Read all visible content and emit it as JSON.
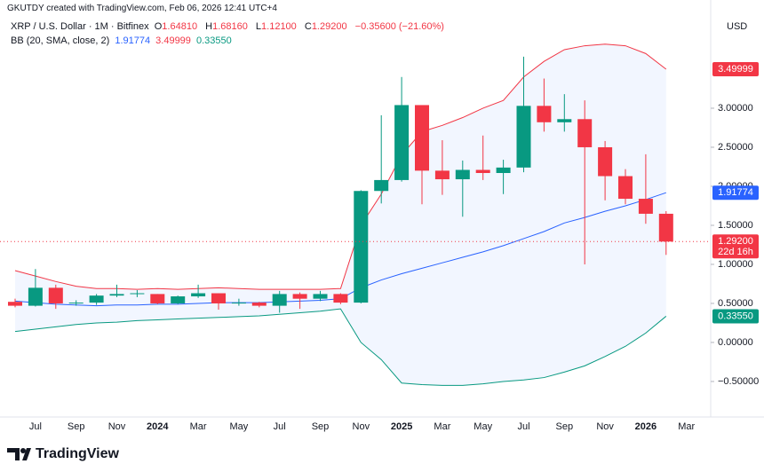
{
  "header": {
    "credit": "GKUTDY created with TradingView.com, Feb 06, 2026 12:41 UTC+4"
  },
  "footer": {
    "brand": "TradingView"
  },
  "chart_data": {
    "type": "candlestick",
    "title": "XRP / U.S. Dollar · 1M · Bitfinex",
    "ohlc_legend": [
      {
        "prefix": "O",
        "text": "1.64810"
      },
      {
        "prefix": "H",
        "text": "1.68160"
      },
      {
        "prefix": "L",
        "text": "1.12100"
      },
      {
        "prefix": "C",
        "text": "1.29200"
      }
    ],
    "change": "−0.35600 (−21.60%)",
    "currency": "USD",
    "countdown": "22d 16h",
    "up_color": "#089981",
    "down_color": "#f23645",
    "categories": [
      null,
      "Jul",
      null,
      "Sep",
      null,
      "Nov",
      null,
      "2024",
      null,
      "Mar",
      null,
      "May",
      null,
      "Jul",
      null,
      "Sep",
      null,
      "Nov",
      null,
      "2025",
      null,
      "Mar",
      null,
      "May",
      null,
      "Jul",
      null,
      "Sep",
      null,
      "Nov",
      null,
      "2026",
      null,
      "Mar"
    ],
    "open": [
      0.52,
      0.47,
      0.7,
      0.5,
      0.51,
      0.6,
      0.62,
      0.62,
      0.5,
      0.59,
      0.63,
      0.5,
      0.51,
      0.47,
      0.62,
      0.56,
      0.62,
      0.51,
      1.94,
      2.08,
      3.04,
      2.2,
      2.09,
      2.21,
      2.17,
      2.24,
      3.03,
      2.82,
      2.86,
      2.5,
      2.13,
      1.84,
      1.6481,
      null
    ],
    "high": [
      0.56,
      0.94,
      0.74,
      0.54,
      0.62,
      0.74,
      0.67,
      0.62,
      0.6,
      0.74,
      0.63,
      0.56,
      0.52,
      0.66,
      0.64,
      0.66,
      0.63,
      1.95,
      2.91,
      3.4,
      3.04,
      2.59,
      2.33,
      2.65,
      2.34,
      3.66,
      3.38,
      3.18,
      3.1,
      2.58,
      2.22,
      2.41,
      1.6816,
      null
    ],
    "low": [
      0.45,
      0.46,
      0.43,
      0.47,
      0.48,
      0.58,
      0.58,
      0.49,
      0.49,
      0.57,
      0.42,
      0.47,
      0.45,
      0.38,
      0.43,
      0.53,
      0.49,
      0.5,
      1.78,
      2.06,
      1.77,
      1.89,
      1.61,
      2.08,
      1.9,
      2.18,
      2.7,
      2.7,
      1.0,
      1.82,
      1.77,
      1.52,
      1.121,
      null
    ],
    "close": [
      0.47,
      0.7,
      0.5,
      0.51,
      0.6,
      0.62,
      0.63,
      0.5,
      0.59,
      0.63,
      0.5,
      0.51,
      0.47,
      0.62,
      0.56,
      0.62,
      0.51,
      1.94,
      2.08,
      3.04,
      2.2,
      2.09,
      2.21,
      2.17,
      2.24,
      3.03,
      2.82,
      2.86,
      2.5,
      2.13,
      1.84,
      1.6481,
      1.292,
      null
    ],
    "bands": {
      "label": "BB (20, SMA, close, 2)",
      "series": [
        {
          "color": "#2962ff",
          "last_label": "1.91774",
          "values": [
            0.53,
            0.51,
            0.49,
            0.48,
            0.47,
            0.48,
            0.48,
            0.49,
            0.49,
            0.5,
            0.51,
            0.51,
            0.51,
            0.52,
            0.53,
            0.54,
            0.56,
            0.7,
            0.8,
            0.88,
            0.95,
            1.02,
            1.09,
            1.16,
            1.24,
            1.33,
            1.42,
            1.53,
            1.6,
            1.68,
            1.75,
            1.83,
            1.91774,
            null
          ]
        },
        {
          "color": "#f23645",
          "last_label": "3.49999",
          "values": [
            0.92,
            0.85,
            0.78,
            0.72,
            0.69,
            0.69,
            0.68,
            0.69,
            0.68,
            0.69,
            0.7,
            0.69,
            0.68,
            0.68,
            0.68,
            0.68,
            0.69,
            1.5,
            1.9,
            2.4,
            2.7,
            2.78,
            2.88,
            3.0,
            3.1,
            3.4,
            3.6,
            3.75,
            3.8,
            3.82,
            3.8,
            3.7,
            3.49999,
            null
          ]
        },
        {
          "color": "#089981",
          "last_label": "0.33550",
          "values": [
            0.14,
            0.17,
            0.2,
            0.23,
            0.25,
            0.26,
            0.28,
            0.29,
            0.3,
            0.31,
            0.32,
            0.33,
            0.34,
            0.36,
            0.38,
            0.4,
            0.43,
            0.0,
            -0.22,
            -0.52,
            -0.54,
            -0.55,
            -0.55,
            -0.53,
            -0.5,
            -0.48,
            -0.45,
            -0.38,
            -0.3,
            -0.18,
            -0.05,
            0.12,
            0.3355,
            null
          ]
        }
      ],
      "fill": "#2962ff"
    },
    "ylim": [
      -0.955,
      4.386
    ],
    "yticks": [
      {
        "value": -0.5,
        "label": "−0.50000"
      },
      {
        "value": 0,
        "label": "0.00000"
      },
      {
        "value": 0.5,
        "label": "0.50000"
      },
      {
        "value": 1,
        "label": "1.00000"
      },
      {
        "value": 1.5,
        "label": "1.50000"
      },
      {
        "value": 2,
        "label": "2.00000"
      },
      {
        "value": 2.5,
        "label": "2.50000"
      },
      {
        "value": 3,
        "label": "3.00000"
      }
    ]
  }
}
